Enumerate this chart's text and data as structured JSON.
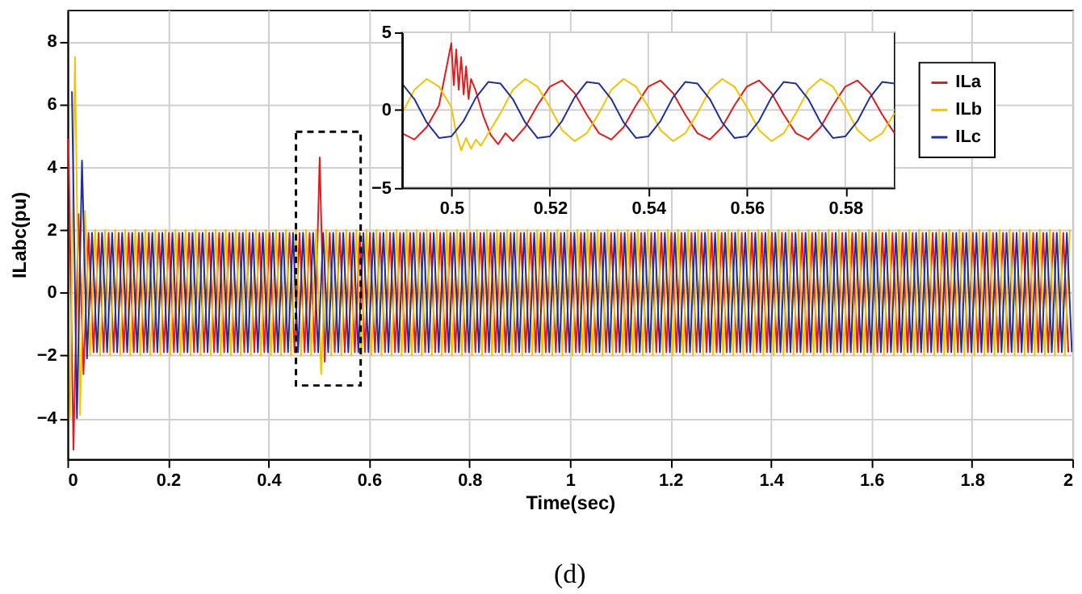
{
  "chart_data": [
    {
      "type": "line",
      "xlabel": "Time(sec)",
      "ylabel": "ILabc(pu)",
      "annotations": [
        "(d)"
      ],
      "xlim": [
        0,
        2
      ],
      "ylim": [
        -5.3,
        9
      ],
      "xticks": [
        0,
        0.2,
        0.4,
        0.6,
        0.8,
        1,
        1.2,
        1.4,
        1.6,
        1.8,
        2
      ],
      "yticks": [
        -4,
        -2,
        0,
        2,
        4,
        6,
        8
      ],
      "grid": true,
      "series": [
        {
          "color": "#e41a1c",
          "x": [
            0.002,
            0.012,
            0.022,
            0.032,
            0.042,
            0.052,
            0.062,
            0.072,
            0.082,
            0.092,
            0.102,
            0.112,
            0.122,
            0.132,
            0.142,
            0.152,
            0.162,
            0.172,
            0.182,
            0.192,
            0.202,
            0.212,
            0.222,
            0.232,
            0.242,
            0.252,
            0.262,
            0.272,
            0.282,
            0.292,
            0.302,
            0.312,
            0.322,
            0.332,
            0.342,
            0.352,
            0.362,
            0.372,
            0.382,
            0.392,
            0.402,
            0.412,
            0.422,
            0.432,
            0.442,
            0.452,
            0.462,
            0.472,
            0.482,
            0.492,
            0.502,
            0.512,
            0.522,
            0.532,
            0.542,
            0.552,
            0.562,
            0.572,
            0.582,
            0.592,
            0.602,
            0.612,
            0.622,
            0.632,
            0.642,
            0.652,
            0.662,
            0.672,
            0.682,
            0.692,
            0.702,
            0.712,
            0.722,
            0.732,
            0.742,
            0.752,
            0.762,
            0.772,
            0.782,
            0.792,
            0.802,
            0.812,
            0.822,
            0.832,
            0.842,
            0.852,
            0.862,
            0.872,
            0.882,
            0.892,
            0.902,
            0.912,
            0.922,
            0.932,
            0.942,
            0.952,
            0.962,
            0.972,
            0.982,
            0.992,
            1.002,
            1.012,
            1.022,
            1.032,
            1.042,
            1.052,
            1.062,
            1.072,
            1.082,
            1.092,
            1.102,
            1.112,
            1.122,
            1.132,
            1.142,
            1.152,
            1.162,
            1.172,
            1.182,
            1.192,
            1.202,
            1.212,
            1.222,
            1.232,
            1.242,
            1.252,
            1.262,
            1.272,
            1.282,
            1.292,
            1.302,
            1.312,
            1.322,
            1.332,
            1.342,
            1.352,
            1.362,
            1.372,
            1.382,
            1.392,
            1.402,
            1.412,
            1.422,
            1.432,
            1.442,
            1.452,
            1.462,
            1.472,
            1.482,
            1.492,
            1.502,
            1.512,
            1.522,
            1.532,
            1.542,
            1.552,
            1.562,
            1.572,
            1.582,
            1.592,
            1.602,
            1.612,
            1.622,
            1.632,
            1.642,
            1.652,
            1.662,
            1.672,
            1.682,
            1.692,
            1.702,
            1.712,
            1.722,
            1.732,
            1.742,
            1.752,
            1.762,
            1.772,
            1.782,
            1.792,
            1.802,
            1.812,
            1.822,
            1.832,
            1.842,
            1.852,
            1.862,
            1.872,
            1.882,
            1.892,
            1.902,
            1.912,
            1.922,
            1.932,
            1.942,
            1.952,
            1.962,
            1.972,
            1.982,
            1.992
          ],
          "values": [
            4.9,
            -5.0,
            2.5,
            -2.6,
            1.9,
            -1.9,
            1.9,
            -1.9,
            1.9,
            -1.9,
            1.9,
            -1.9,
            1.9,
            -1.9,
            1.9,
            -1.9,
            1.9,
            -1.9,
            1.9,
            -1.9,
            1.9,
            -1.9,
            1.9,
            -1.9,
            1.9,
            -1.9,
            1.9,
            -1.9,
            1.9,
            -1.9,
            1.9,
            -1.9,
            1.9,
            -1.9,
            1.9,
            -1.9,
            1.9,
            -1.9,
            1.9,
            -1.9,
            1.9,
            -1.9,
            1.9,
            -1.9,
            1.9,
            -1.9,
            1.9,
            -1.9,
            1.9,
            -1.9,
            4.3,
            -2.2,
            1.9,
            -1.9,
            1.9,
            -1.9,
            1.9,
            -1.9,
            1.9,
            -1.9,
            1.9,
            -1.9,
            1.9,
            -1.9,
            1.9,
            -1.9,
            1.9,
            -1.9,
            1.9,
            -1.9,
            1.9,
            -1.9,
            1.9,
            -1.9,
            1.9,
            -1.9,
            1.9,
            -1.9,
            1.9,
            -1.9,
            1.9,
            -1.9,
            1.9,
            -1.9,
            1.9,
            -1.9,
            1.9,
            -1.9,
            1.9,
            -1.9,
            1.9,
            -1.9,
            1.9,
            -1.9,
            1.9,
            -1.9,
            1.9,
            -1.9,
            1.9,
            -1.9,
            1.9,
            -1.9,
            1.9,
            -1.9,
            1.9,
            -1.9,
            1.9,
            -1.9,
            1.9,
            -1.9,
            1.9,
            -1.9,
            1.9,
            -1.9,
            1.9,
            -1.9,
            1.9,
            -1.9,
            1.9,
            -1.9,
            1.9,
            -1.9,
            1.9,
            -1.9,
            1.9,
            -1.9,
            1.9,
            -1.9,
            1.9,
            -1.9,
            1.9,
            -1.9,
            1.9,
            -1.9,
            1.9,
            -1.9,
            1.9,
            -1.9,
            1.9,
            -1.9,
            1.9,
            -1.9,
            1.9,
            -1.9,
            1.9,
            -1.9,
            1.9,
            -1.9,
            1.9,
            -1.9,
            1.9,
            -1.9,
            1.9,
            -1.9,
            1.9,
            -1.9,
            1.9,
            -1.9,
            1.9,
            -1.9,
            1.9,
            -1.9,
            1.9,
            -1.9,
            1.9,
            -1.9,
            1.9,
            -1.9,
            1.9,
            -1.9,
            1.9,
            -1.9,
            1.9,
            -1.9,
            1.9,
            -1.9,
            1.9,
            -1.9,
            1.9,
            -1.9,
            1.9,
            -1.9,
            1.9,
            -1.9,
            1.9,
            -1.9,
            1.9,
            -1.9,
            1.9,
            -1.9,
            1.9,
            -1.9,
            1.9,
            -1.9,
            1.9,
            -1.9,
            1.9,
            -1.9,
            1.9,
            -1.9
          ]
        },
        {
          "color": "#f2c500",
          "x": [
            0.005,
            0.015,
            0.025,
            0.035,
            0.045,
            0.055,
            0.065,
            0.075,
            0.085,
            0.095,
            0.105,
            0.115,
            0.125,
            0.135,
            0.145,
            0.155,
            0.165,
            0.175,
            0.185,
            0.195,
            0.205,
            0.215,
            0.225,
            0.235,
            0.245,
            0.255,
            0.265,
            0.275,
            0.285,
            0.295,
            0.305,
            0.315,
            0.325,
            0.335,
            0.345,
            0.355,
            0.365,
            0.375,
            0.385,
            0.395,
            0.405,
            0.415,
            0.425,
            0.435,
            0.445,
            0.455,
            0.465,
            0.475,
            0.485,
            0.495,
            0.505,
            0.515,
            0.525,
            0.535,
            0.545,
            0.555,
            0.565,
            0.575,
            0.585,
            0.595,
            0.605,
            0.615,
            0.625,
            0.635,
            0.645,
            0.655,
            0.665,
            0.675,
            0.685,
            0.695,
            0.705,
            0.715,
            0.725,
            0.735,
            0.745,
            0.755,
            0.765,
            0.775,
            0.785,
            0.795,
            0.805,
            0.815,
            0.825,
            0.835,
            0.845,
            0.855,
            0.865,
            0.875,
            0.885,
            0.895,
            0.905,
            0.915,
            0.925,
            0.935,
            0.945,
            0.955,
            0.965,
            0.975,
            0.985,
            0.995,
            1.005,
            1.015,
            1.025,
            1.035,
            1.045,
            1.055,
            1.065,
            1.075,
            1.085,
            1.095,
            1.105,
            1.115,
            1.125,
            1.135,
            1.145,
            1.155,
            1.165,
            1.175,
            1.185,
            1.195,
            1.205,
            1.215,
            1.225,
            1.235,
            1.245,
            1.255,
            1.265,
            1.275,
            1.285,
            1.295,
            1.305,
            1.315,
            1.325,
            1.335,
            1.345,
            1.355,
            1.365,
            1.375,
            1.385,
            1.395,
            1.405,
            1.415,
            1.425,
            1.435,
            1.445,
            1.455,
            1.465,
            1.475,
            1.485,
            1.495,
            1.505,
            1.515,
            1.525,
            1.535,
            1.545,
            1.555,
            1.565,
            1.575,
            1.585,
            1.595,
            1.605,
            1.615,
            1.625,
            1.635,
            1.645,
            1.655,
            1.665,
            1.675,
            1.685,
            1.695,
            1.705,
            1.715,
            1.725,
            1.735,
            1.745,
            1.755,
            1.765,
            1.775,
            1.785,
            1.795,
            1.805,
            1.815,
            1.825,
            1.835,
            1.845,
            1.855,
            1.865,
            1.875,
            1.885,
            1.895,
            1.905,
            1.915,
            1.925,
            1.935,
            1.945,
            1.955,
            1.965,
            1.975,
            1.985,
            1.995
          ],
          "values": [
            -4.0,
            7.5,
            -3.9,
            2.6,
            -2.0,
            2.0,
            -2.0,
            2.0,
            -2.0,
            2.0,
            -2.0,
            2.0,
            -2.0,
            2.0,
            -2.0,
            2.0,
            -2.0,
            2.0,
            -2.0,
            2.0,
            -2.0,
            2.0,
            -2.0,
            2.0,
            -2.0,
            2.0,
            -2.0,
            2.0,
            -2.0,
            2.0,
            -2.0,
            2.0,
            -2.0,
            2.0,
            -2.0,
            2.0,
            -2.0,
            2.0,
            -2.0,
            2.0,
            -2.0,
            2.0,
            -2.0,
            2.0,
            -2.0,
            2.0,
            -2.0,
            2.0,
            -2.0,
            2.0,
            -2.6,
            2.0,
            -2.0,
            2.0,
            -2.0,
            2.0,
            -2.0,
            2.0,
            -2.0,
            2.0,
            -2.0,
            2.0,
            -2.0,
            2.0,
            -2.0,
            2.0,
            -2.0,
            2.0,
            -2.0,
            2.0,
            -2.0,
            2.0,
            -2.0,
            2.0,
            -2.0,
            2.0,
            -2.0,
            2.0,
            -2.0,
            2.0,
            -2.0,
            2.0,
            -2.0,
            2.0,
            -2.0,
            2.0,
            -2.0,
            2.0,
            -2.0,
            2.0,
            -2.0,
            2.0,
            -2.0,
            2.0,
            -2.0,
            2.0,
            -2.0,
            2.0,
            -2.0,
            2.0,
            -2.0,
            2.0,
            -2.0,
            2.0,
            -2.0,
            2.0,
            -2.0,
            2.0,
            -2.0,
            2.0,
            -2.0,
            2.0,
            -2.0,
            2.0,
            -2.0,
            2.0,
            -2.0,
            2.0,
            -2.0,
            2.0,
            -2.0,
            2.0,
            -2.0,
            2.0,
            -2.0,
            2.0,
            -2.0,
            2.0,
            -2.0,
            2.0,
            -2.0,
            2.0,
            -2.0,
            2.0,
            -2.0,
            2.0,
            -2.0,
            2.0,
            -2.0,
            2.0,
            -2.0,
            2.0,
            -2.0,
            2.0,
            -2.0,
            2.0,
            -2.0,
            2.0,
            -2.0,
            2.0,
            -2.0,
            2.0,
            -2.0,
            2.0,
            -2.0,
            2.0,
            -2.0,
            2.0,
            -2.0,
            2.0,
            -2.0,
            2.0,
            -2.0,
            2.0,
            -2.0,
            2.0,
            -2.0,
            2.0,
            -2.0,
            2.0,
            -2.0,
            2.0,
            -2.0,
            2.0,
            -2.0,
            2.0,
            -2.0,
            2.0,
            -2.0,
            2.0,
            -2.0,
            2.0,
            -2.0,
            2.0,
            -2.0,
            2.0,
            -2.0,
            2.0,
            -2.0,
            2.0,
            -2.0,
            2.0,
            -2.0,
            2.0,
            -2.0,
            2.0,
            -2.0,
            2.0,
            -2.0,
            2.0
          ]
        },
        {
          "color": "#1f2f9f",
          "x": [
            0.009,
            0.019,
            0.029,
            0.039,
            0.049,
            0.059,
            0.069,
            0.079,
            0.089,
            0.099,
            0.109,
            0.119,
            0.129,
            0.139,
            0.149,
            0.159,
            0.169,
            0.179,
            0.189,
            0.199,
            0.209,
            0.219,
            0.229,
            0.239,
            0.249,
            0.259,
            0.269,
            0.279,
            0.289,
            0.299,
            0.309,
            0.319,
            0.329,
            0.339,
            0.349,
            0.359,
            0.369,
            0.379,
            0.389,
            0.399,
            0.409,
            0.419,
            0.429,
            0.439,
            0.449,
            0.459,
            0.469,
            0.479,
            0.489,
            0.499,
            0.509,
            0.519,
            0.529,
            0.539,
            0.549,
            0.559,
            0.569,
            0.579,
            0.589,
            0.599,
            0.609,
            0.619,
            0.629,
            0.639,
            0.649,
            0.659,
            0.669,
            0.679,
            0.689,
            0.699,
            0.709,
            0.719,
            0.729,
            0.739,
            0.749,
            0.759,
            0.769,
            0.779,
            0.789,
            0.799,
            0.809,
            0.819,
            0.829,
            0.839,
            0.849,
            0.859,
            0.869,
            0.879,
            0.889,
            0.899,
            0.909,
            0.919,
            0.929,
            0.939,
            0.949,
            0.959,
            0.969,
            0.979,
            0.989,
            0.999,
            1.009,
            1.019,
            1.029,
            1.039,
            1.049,
            1.059,
            1.069,
            1.079,
            1.089,
            1.099,
            1.109,
            1.119,
            1.129,
            1.139,
            1.149,
            1.159,
            1.169,
            1.179,
            1.189,
            1.199,
            1.209,
            1.219,
            1.229,
            1.239,
            1.249,
            1.259,
            1.269,
            1.279,
            1.289,
            1.299,
            1.309,
            1.319,
            1.329,
            1.339,
            1.349,
            1.359,
            1.369,
            1.379,
            1.389,
            1.399,
            1.409,
            1.419,
            1.429,
            1.439,
            1.449,
            1.459,
            1.469,
            1.479,
            1.489,
            1.499,
            1.509,
            1.519,
            1.529,
            1.539,
            1.549,
            1.559,
            1.569,
            1.579,
            1.589,
            1.599,
            1.609,
            1.619,
            1.629,
            1.639,
            1.649,
            1.659,
            1.669,
            1.679,
            1.689,
            1.699,
            1.709,
            1.719,
            1.729,
            1.739,
            1.749,
            1.759,
            1.769,
            1.779,
            1.789,
            1.799,
            1.809,
            1.819,
            1.829,
            1.839,
            1.849,
            1.859,
            1.869,
            1.879,
            1.889,
            1.899,
            1.909,
            1.919,
            1.929,
            1.939,
            1.949,
            1.959,
            1.969,
            1.979,
            1.989,
            1.999
          ],
          "values": [
            6.4,
            -4.0,
            4.2,
            -2.1,
            1.9,
            -1.9,
            1.9,
            -1.9,
            1.9,
            -1.9,
            1.9,
            -1.9,
            1.9,
            -1.9,
            1.9,
            -1.9,
            1.9,
            -1.9,
            1.9,
            -1.9,
            1.9,
            -1.9,
            1.9,
            -1.9,
            1.9,
            -1.9,
            1.9,
            -1.9,
            1.9,
            -1.9,
            1.9,
            -1.9,
            1.9,
            -1.9,
            1.9,
            -1.9,
            1.9,
            -1.9,
            1.9,
            -1.9,
            1.9,
            -1.9,
            1.9,
            -1.9,
            1.9,
            -1.9,
            1.9,
            -1.9,
            1.9,
            -1.9,
            1.9,
            -1.9,
            1.9,
            -1.9,
            1.9,
            -1.9,
            1.9,
            -1.9,
            1.9,
            -1.9,
            1.9,
            -1.9,
            1.9,
            -1.9,
            1.9,
            -1.9,
            1.9,
            -1.9,
            1.9,
            -1.9,
            1.9,
            -1.9,
            1.9,
            -1.9,
            1.9,
            -1.9,
            1.9,
            -1.9,
            1.9,
            -1.9,
            1.9,
            -1.9,
            1.9,
            -1.9,
            1.9,
            -1.9,
            1.9,
            -1.9,
            1.9,
            -1.9,
            1.9,
            -1.9,
            1.9,
            -1.9,
            1.9,
            -1.9,
            1.9,
            -1.9,
            1.9,
            -1.9,
            1.9,
            -1.9,
            1.9,
            -1.9,
            1.9,
            -1.9,
            1.9,
            -1.9,
            1.9,
            -1.9,
            1.9,
            -1.9,
            1.9,
            -1.9,
            1.9,
            -1.9,
            1.9,
            -1.9,
            1.9,
            -1.9,
            1.9,
            -1.9,
            1.9,
            -1.9,
            1.9,
            -1.9,
            1.9,
            -1.9,
            1.9,
            -1.9,
            1.9,
            -1.9,
            1.9,
            -1.9,
            1.9,
            -1.9,
            1.9,
            -1.9,
            1.9,
            -1.9,
            1.9,
            -1.9,
            1.9,
            -1.9,
            1.9,
            -1.9,
            1.9,
            -1.9,
            1.9,
            -1.9,
            1.9,
            -1.9,
            1.9,
            -1.9,
            1.9,
            -1.9,
            1.9,
            -1.9,
            1.9,
            -1.9,
            1.9,
            -1.9,
            1.9,
            -1.9,
            1.9,
            -1.9,
            1.9,
            -1.9,
            1.9,
            -1.9,
            1.9,
            -1.9,
            1.9,
            -1.9,
            1.9,
            -1.9,
            1.9,
            -1.9,
            1.9,
            -1.9,
            1.9,
            -1.9,
            1.9,
            -1.9,
            1.9,
            -1.9,
            1.9,
            -1.9,
            1.9,
            -1.9,
            1.9,
            -1.9,
            1.9,
            -1.9,
            1.9,
            -1.9,
            1.9,
            -1.9,
            1.9,
            -1.9
          ]
        }
      ]
    },
    {
      "type": "line",
      "xlim": [
        0.49,
        0.59
      ],
      "ylim": [
        -5,
        5
      ],
      "xticks": [
        0.5,
        0.52,
        0.54,
        0.56,
        0.58
      ],
      "yticks": [
        -5,
        0,
        5
      ],
      "grid": true,
      "legend": "right",
      "x": [
        0.49,
        0.4925,
        0.495,
        0.4975,
        0.5,
        0.5025,
        0.505,
        0.5075,
        0.51,
        0.5125,
        0.515,
        0.5175,
        0.52,
        0.5225,
        0.525,
        0.5275,
        0.53,
        0.5325,
        0.535,
        0.5375,
        0.54,
        0.5425,
        0.545,
        0.5475,
        0.55,
        0.5525,
        0.555,
        0.5575,
        0.56,
        0.5625,
        0.565,
        0.5675,
        0.57,
        0.5725,
        0.575,
        0.5775,
        0.58,
        0.5825,
        0.585,
        0.5875,
        0.59
      ],
      "series": [
        {
          "name": "ILa",
          "color": "#e41a1c",
          "x": [
            0.49,
            0.4925,
            0.495,
            0.4975,
            0.5,
            0.5005,
            0.501,
            0.5015,
            0.502,
            0.5025,
            0.503,
            0.5035,
            0.504,
            0.505,
            0.5065,
            0.508,
            0.5095,
            0.511,
            0.5125,
            0.515,
            0.5175,
            0.52,
            0.5225,
            0.525,
            0.5275,
            0.53,
            0.5325,
            0.535,
            0.5375,
            0.54,
            0.5425,
            0.545,
            0.5475,
            0.55,
            0.5525,
            0.555,
            0.5575,
            0.56,
            0.5625,
            0.565,
            0.5675,
            0.57,
            0.5725,
            0.575,
            0.5775,
            0.58,
            0.5825,
            0.585,
            0.5875,
            0.59
          ],
          "values": [
            -1.5,
            -1.9,
            -1.1,
            0.3,
            4.3,
            1.6,
            3.9,
            1.3,
            3.4,
            1.0,
            2.8,
            0.7,
            2.0,
            1.2,
            -0.4,
            -1.6,
            -2.2,
            -1.5,
            -2.0,
            -1.1,
            0.3,
            1.5,
            1.9,
            1.1,
            -0.3,
            -1.5,
            -1.9,
            -1.1,
            0.3,
            1.5,
            1.9,
            1.1,
            -0.3,
            -1.5,
            -1.9,
            -1.1,
            0.3,
            1.5,
            1.9,
            1.1,
            -0.3,
            -1.5,
            -1.9,
            -1.1,
            0.3,
            1.5,
            1.9,
            1.1,
            -0.3,
            -1.5
          ]
        },
        {
          "name": "ILb",
          "color": "#f2c500",
          "x": [
            0.49,
            0.4925,
            0.495,
            0.4975,
            0.5,
            0.501,
            0.502,
            0.503,
            0.504,
            0.505,
            0.506,
            0.5075,
            0.51,
            0.5125,
            0.515,
            0.5175,
            0.52,
            0.5225,
            0.525,
            0.5275,
            0.53,
            0.5325,
            0.535,
            0.5375,
            0.54,
            0.5425,
            0.545,
            0.5475,
            0.55,
            0.5525,
            0.555,
            0.5575,
            0.56,
            0.5625,
            0.565,
            0.5675,
            0.57,
            0.5725,
            0.575,
            0.5775,
            0.58,
            0.5825,
            0.585,
            0.5875,
            0.59
          ],
          "values": [
            -0.2,
            1.3,
            2.0,
            1.5,
            0.2,
            -1.5,
            -2.6,
            -1.8,
            -2.5,
            -1.9,
            -2.3,
            -1.5,
            -0.2,
            1.3,
            2.0,
            1.5,
            0.2,
            -1.3,
            -2.0,
            -1.5,
            -0.2,
            1.3,
            2.0,
            1.5,
            0.2,
            -1.3,
            -2.0,
            -1.5,
            -0.2,
            1.3,
            2.0,
            1.5,
            0.2,
            -1.3,
            -2.0,
            -1.5,
            -0.2,
            1.3,
            2.0,
            1.5,
            0.2,
            -1.3,
            -2.0,
            -1.5,
            -0.2
          ]
        },
        {
          "name": "ILc",
          "color": "#1f2f9f",
          "values": [
            1.7,
            0.7,
            -0.8,
            -1.8,
            -1.7,
            -0.7,
            0.8,
            1.8,
            1.7,
            0.7,
            -0.8,
            -1.8,
            -1.7,
            -0.7,
            0.8,
            1.8,
            1.7,
            0.7,
            -0.8,
            -1.8,
            -1.7,
            -0.7,
            0.8,
            1.8,
            1.7,
            0.7,
            -0.8,
            -1.8,
            -1.7,
            -0.7,
            0.8,
            1.8,
            1.7,
            0.7,
            -0.8,
            -1.8,
            -1.7,
            -0.7,
            0.8,
            1.8,
            1.7
          ]
        }
      ]
    }
  ]
}
